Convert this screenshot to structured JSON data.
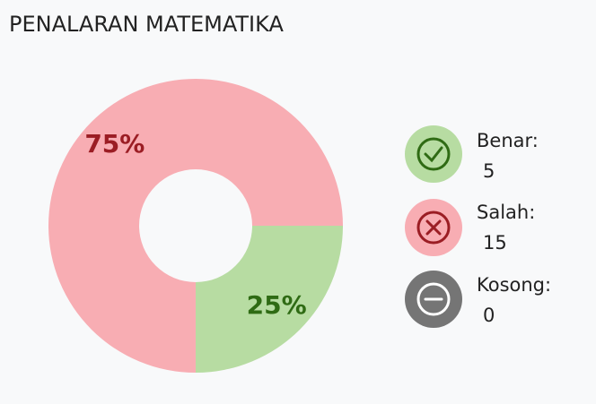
{
  "chart_data": {
    "type": "donut",
    "title": "PENALARAN MATEMATIKA",
    "categories": [
      "Benar",
      "Salah"
    ],
    "values": [
      25,
      75
    ],
    "value_labels": [
      "25%",
      "75%"
    ],
    "colors": [
      "#b7dca2",
      "#f8adb3"
    ],
    "label_colors": [
      "#2f6b14",
      "#9b1d24"
    ]
  },
  "legend": [
    {
      "label": "Benar:",
      "count": 5
    },
    {
      "label": "Salah:",
      "count": 15
    },
    {
      "label": "Kosong:",
      "count": 0
    }
  ]
}
